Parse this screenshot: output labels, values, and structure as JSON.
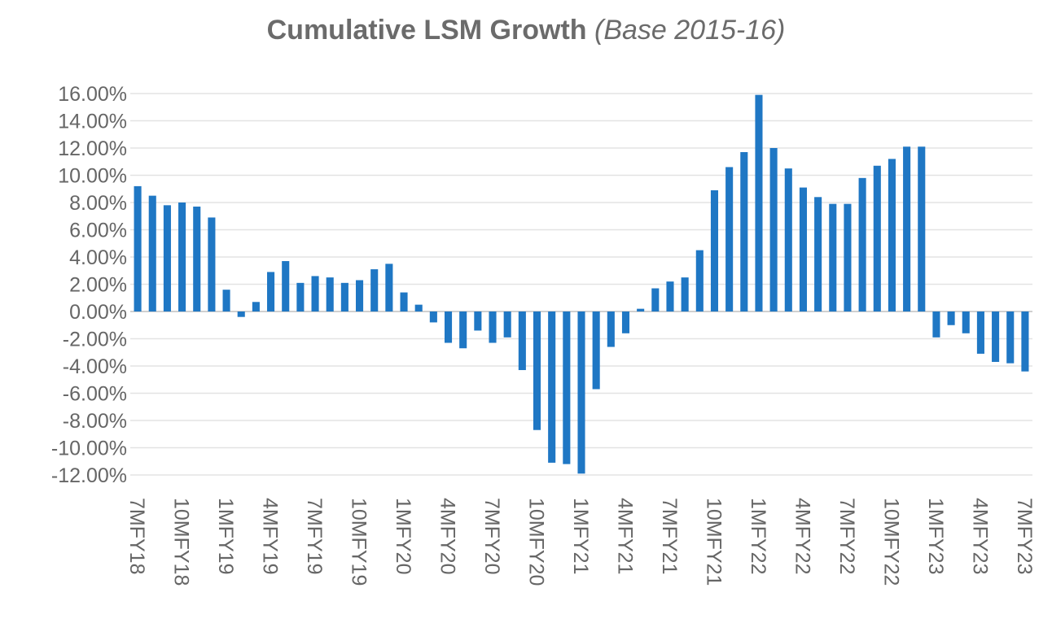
{
  "chart_data": {
    "type": "bar",
    "title": "Cumulative LSM Growth",
    "subtitle": "(Base 2015-16)",
    "xlabel": "",
    "ylabel": "",
    "ylim": [
      -12,
      16
    ],
    "yticks": [
      16,
      14,
      12,
      10,
      8,
      6,
      4,
      2,
      0,
      -2,
      -4,
      -6,
      -8,
      -10,
      -12
    ],
    "ytick_labels": [
      "16.00%",
      "14.00%",
      "12.00%",
      "10.00%",
      "8.00%",
      "6.00%",
      "4.00%",
      "2.00%",
      "0.00%",
      "-2.00%",
      "-4.00%",
      "-6.00%",
      "-8.00%",
      "-10.00%",
      "-12.00%"
    ],
    "x_tick_labels": [
      {
        "index": 0,
        "label": "7MFY18"
      },
      {
        "index": 3,
        "label": "10MFY18"
      },
      {
        "index": 6,
        "label": "1MFY19"
      },
      {
        "index": 9,
        "label": "4MFY19"
      },
      {
        "index": 12,
        "label": "7MFY19"
      },
      {
        "index": 15,
        "label": "10MFY19"
      },
      {
        "index": 18,
        "label": "1MFY20"
      },
      {
        "index": 21,
        "label": "4MFY20"
      },
      {
        "index": 24,
        "label": "7MFY20"
      },
      {
        "index": 27,
        "label": "10MFY20"
      },
      {
        "index": 30,
        "label": "1MFY21"
      },
      {
        "index": 33,
        "label": "4MFY21"
      },
      {
        "index": 36,
        "label": "7MFY21"
      },
      {
        "index": 39,
        "label": "10MFY21"
      },
      {
        "index": 42,
        "label": "1MFY22"
      },
      {
        "index": 45,
        "label": "4MFY22"
      },
      {
        "index": 48,
        "label": "7MFY22"
      },
      {
        "index": 51,
        "label": "10MFY22"
      },
      {
        "index": 54,
        "label": "1MFY23"
      },
      {
        "index": 57,
        "label": "4MFY23"
      },
      {
        "index": 60,
        "label": "7MFY23"
      }
    ],
    "values": [
      9.2,
      8.5,
      7.8,
      8.0,
      7.7,
      6.9,
      1.6,
      -0.4,
      0.7,
      2.9,
      3.7,
      2.1,
      2.6,
      2.5,
      2.1,
      2.3,
      3.1,
      3.5,
      1.4,
      0.5,
      -0.8,
      -2.3,
      -2.7,
      -1.4,
      -2.3,
      -1.9,
      -4.3,
      -8.7,
      -11.1,
      -11.2,
      -11.9,
      -5.7,
      -2.6,
      -1.6,
      0.2,
      1.7,
      2.2,
      2.5,
      4.5,
      8.9,
      10.6,
      11.7,
      15.9,
      12.0,
      10.5,
      9.1,
      8.4,
      7.9,
      7.9,
      9.8,
      10.7,
      11.2,
      12.1,
      12.1,
      -1.9,
      -1.0,
      -1.6,
      -3.1,
      -3.7,
      -3.8,
      -4.4
    ],
    "colors": {
      "bar": "#1f77c4",
      "grid": "#e3e3e3",
      "zero_line": "#d0d0d0",
      "text": "#666666"
    },
    "grid": true,
    "legend": "none"
  }
}
